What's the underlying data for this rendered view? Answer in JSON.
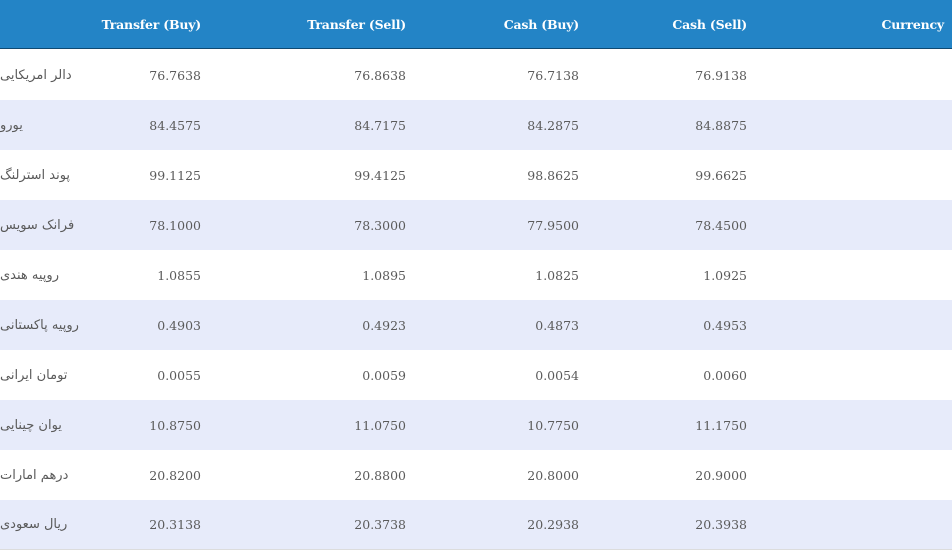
{
  "colors": {
    "header_bg": "#2384c6",
    "header_text": "#ffffff",
    "row_alt_bg": "#e7ebfa",
    "row_bg": "#ffffff",
    "cell_text": "#5a5a5a"
  },
  "table": {
    "headers": {
      "transfer_buy": "Transfer (Buy)",
      "transfer_sell": "Transfer (Sell)",
      "cash_buy": "Cash (Buy)",
      "cash_sell": "Cash (Sell)",
      "currency": "Currency"
    },
    "rows": [
      {
        "transfer_buy": "76.7638",
        "transfer_sell": "76.8638",
        "cash_buy": "76.7138",
        "cash_sell": "76.9138",
        "currency": "دالر امریکایی"
      },
      {
        "transfer_buy": "84.4575",
        "transfer_sell": "84.7175",
        "cash_buy": "84.2875",
        "cash_sell": "84.8875",
        "currency": "یورو"
      },
      {
        "transfer_buy": "99.1125",
        "transfer_sell": "99.4125",
        "cash_buy": "98.8625",
        "cash_sell": "99.6625",
        "currency": "پوند استرلنگ"
      },
      {
        "transfer_buy": "78.1000",
        "transfer_sell": "78.3000",
        "cash_buy": "77.9500",
        "cash_sell": "78.4500",
        "currency": "فرانک سویس"
      },
      {
        "transfer_buy": "1.0855",
        "transfer_sell": "1.0895",
        "cash_buy": "1.0825",
        "cash_sell": "1.0925",
        "currency": "روپیه هندی"
      },
      {
        "transfer_buy": "0.4903",
        "transfer_sell": "0.4923",
        "cash_buy": "0.4873",
        "cash_sell": "0.4953",
        "currency": "روپیه پاکستانی"
      },
      {
        "transfer_buy": "0.0055",
        "transfer_sell": "0.0059",
        "cash_buy": "0.0054",
        "cash_sell": "0.0060",
        "currency": "تومان ایرانی"
      },
      {
        "transfer_buy": "10.8750",
        "transfer_sell": "11.0750",
        "cash_buy": "10.7750",
        "cash_sell": "11.1750",
        "currency": "یوان چینایی"
      },
      {
        "transfer_buy": "20.8200",
        "transfer_sell": "20.8800",
        "cash_buy": "20.8000",
        "cash_sell": "20.9000",
        "currency": "درهم امارات"
      },
      {
        "transfer_buy": "20.3138",
        "transfer_sell": "20.3738",
        "cash_buy": "20.2938",
        "cash_sell": "20.3938",
        "currency": "ریال سعودی"
      }
    ]
  }
}
